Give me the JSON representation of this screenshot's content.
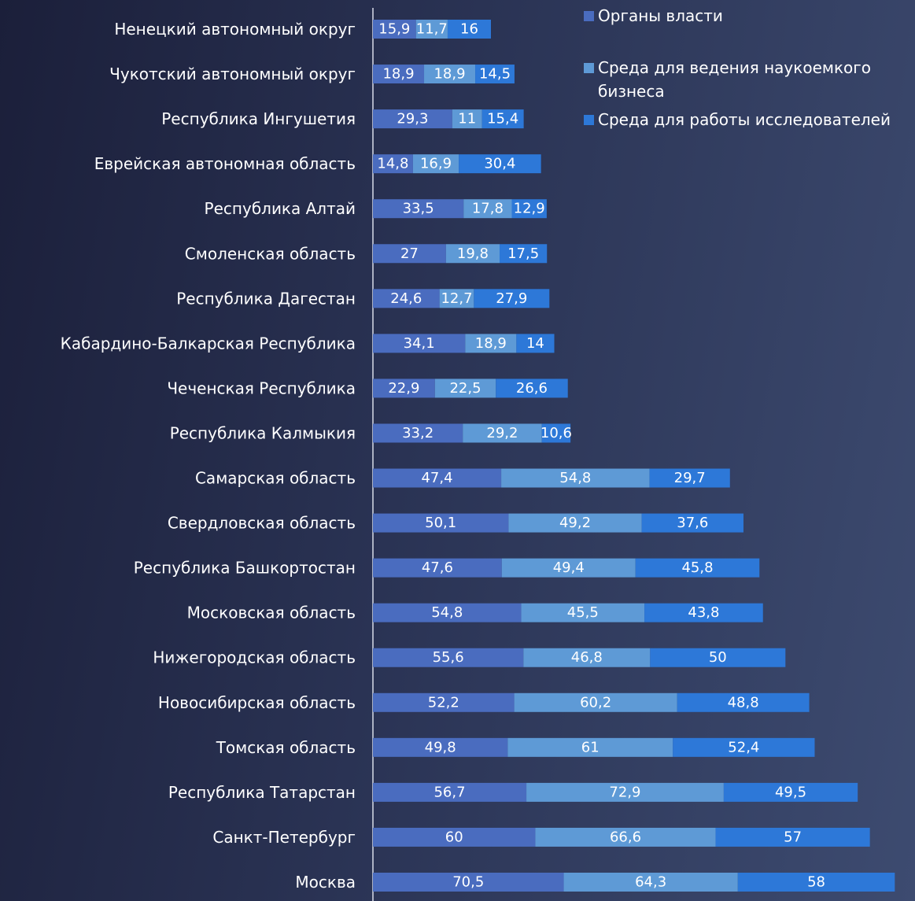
{
  "chart_data": {
    "type": "stacked-barh",
    "categories": [
      "Ненецкий автономный округ",
      "Чукотский автономный округ",
      "Республика Ингушетия",
      "Еврейская автономная область",
      "Республика Алтай",
      "Смоленская область",
      "Республика Дагестан",
      "Кабардино-Балкарская Республика",
      "Чеченская Республика",
      "Республика Калмыкия",
      "Самарская область",
      "Свердловская область",
      "Республика Башкортостан",
      "Московская область",
      "Нижегородская область",
      "Новосибирская область",
      "Томская область",
      "Республика Татарстан",
      "Санкт-Петербург",
      "Москва"
    ],
    "series": [
      {
        "name": "Органы власти",
        "color": "#4a6cbf",
        "values": [
          15.9,
          18.9,
          29.3,
          14.8,
          33.5,
          27,
          24.6,
          34.1,
          22.9,
          33.2,
          47.4,
          50.1,
          47.6,
          54.8,
          55.6,
          52.2,
          49.8,
          56.7,
          60,
          70.5
        ],
        "value_labels": [
          "15,9",
          "18,9",
          "29,3",
          "14,8",
          "33,5",
          "27",
          "24,6",
          "34,1",
          "22,9",
          "33,2",
          "47,4",
          "50,1",
          "47,6",
          "54,8",
          "55,6",
          "52,2",
          "49,8",
          "56,7",
          "60",
          "70,5"
        ]
      },
      {
        "name": "Среда для ведения наукоемкого бизнеса",
        "color": "#5e9ad6",
        "values": [
          11.7,
          18.9,
          11,
          16.9,
          17.8,
          19.8,
          12.7,
          18.9,
          22.5,
          29.2,
          54.8,
          49.2,
          49.4,
          45.5,
          46.8,
          60.2,
          61,
          72.9,
          66.6,
          64.3
        ],
        "value_labels": [
          "11,7",
          "18,9",
          "11",
          "16,9",
          "17,8",
          "19,8",
          "12,7",
          "18,9",
          "22,5",
          "29,2",
          "54,8",
          "49,2",
          "49,4",
          "45,5",
          "46,8",
          "60,2",
          "61",
          "72,9",
          "66,6",
          "64,3"
        ]
      },
      {
        "name": "Среда для работы исследователей",
        "color": "#2d78d8",
        "values": [
          16,
          14.5,
          15.4,
          30.4,
          12.9,
          17.5,
          27.9,
          14,
          26.6,
          10.6,
          29.7,
          37.6,
          45.8,
          43.8,
          50,
          48.8,
          52.4,
          49.5,
          57,
          58
        ],
        "value_labels": [
          "16",
          "14,5",
          "15,4",
          "30,4",
          "12,9",
          "17,5",
          "27,9",
          "14",
          "26,6",
          "10,6",
          "29,7",
          "37,6",
          "45,8",
          "43,8",
          "50",
          "48,8",
          "52,4",
          "49,5",
          "57",
          "58"
        ]
      }
    ],
    "xlim": [
      0,
      193
    ]
  }
}
